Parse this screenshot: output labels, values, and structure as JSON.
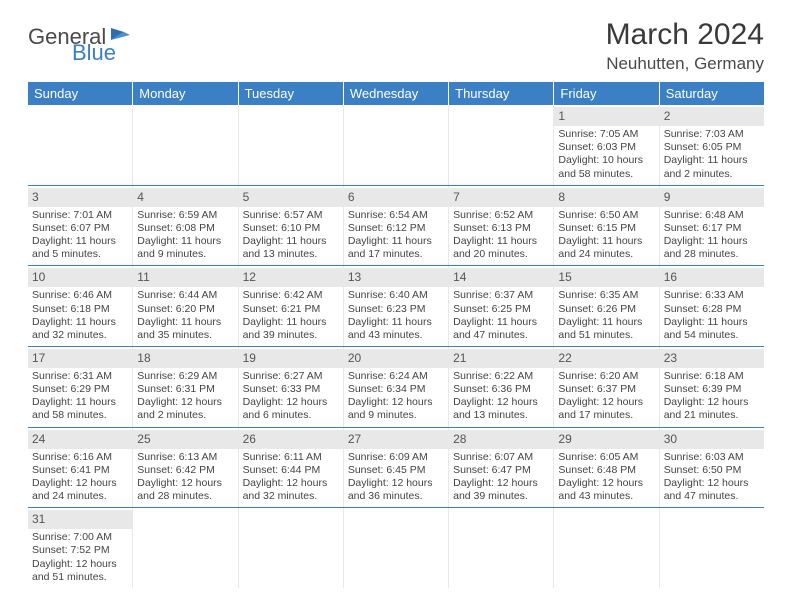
{
  "logo": {
    "text1": "General",
    "text2": "Blue"
  },
  "title": "March 2024",
  "location": "Neuhutten, Germany",
  "colors": {
    "header_bg": "#3b7fc4",
    "daynum_bg": "#e8e8e8",
    "border": "#3b7fc4"
  },
  "day_headers": [
    "Sunday",
    "Monday",
    "Tuesday",
    "Wednesday",
    "Thursday",
    "Friday",
    "Saturday"
  ],
  "weeks": [
    [
      null,
      null,
      null,
      null,
      null,
      {
        "n": "1",
        "sr": "Sunrise: 7:05 AM",
        "ss": "Sunset: 6:03 PM",
        "dl": "Daylight: 10 hours and 58 minutes."
      },
      {
        "n": "2",
        "sr": "Sunrise: 7:03 AM",
        "ss": "Sunset: 6:05 PM",
        "dl": "Daylight: 11 hours and 2 minutes."
      }
    ],
    [
      {
        "n": "3",
        "sr": "Sunrise: 7:01 AM",
        "ss": "Sunset: 6:07 PM",
        "dl": "Daylight: 11 hours and 5 minutes."
      },
      {
        "n": "4",
        "sr": "Sunrise: 6:59 AM",
        "ss": "Sunset: 6:08 PM",
        "dl": "Daylight: 11 hours and 9 minutes."
      },
      {
        "n": "5",
        "sr": "Sunrise: 6:57 AM",
        "ss": "Sunset: 6:10 PM",
        "dl": "Daylight: 11 hours and 13 minutes."
      },
      {
        "n": "6",
        "sr": "Sunrise: 6:54 AM",
        "ss": "Sunset: 6:12 PM",
        "dl": "Daylight: 11 hours and 17 minutes."
      },
      {
        "n": "7",
        "sr": "Sunrise: 6:52 AM",
        "ss": "Sunset: 6:13 PM",
        "dl": "Daylight: 11 hours and 20 minutes."
      },
      {
        "n": "8",
        "sr": "Sunrise: 6:50 AM",
        "ss": "Sunset: 6:15 PM",
        "dl": "Daylight: 11 hours and 24 minutes."
      },
      {
        "n": "9",
        "sr": "Sunrise: 6:48 AM",
        "ss": "Sunset: 6:17 PM",
        "dl": "Daylight: 11 hours and 28 minutes."
      }
    ],
    [
      {
        "n": "10",
        "sr": "Sunrise: 6:46 AM",
        "ss": "Sunset: 6:18 PM",
        "dl": "Daylight: 11 hours and 32 minutes."
      },
      {
        "n": "11",
        "sr": "Sunrise: 6:44 AM",
        "ss": "Sunset: 6:20 PM",
        "dl": "Daylight: 11 hours and 35 minutes."
      },
      {
        "n": "12",
        "sr": "Sunrise: 6:42 AM",
        "ss": "Sunset: 6:21 PM",
        "dl": "Daylight: 11 hours and 39 minutes."
      },
      {
        "n": "13",
        "sr": "Sunrise: 6:40 AM",
        "ss": "Sunset: 6:23 PM",
        "dl": "Daylight: 11 hours and 43 minutes."
      },
      {
        "n": "14",
        "sr": "Sunrise: 6:37 AM",
        "ss": "Sunset: 6:25 PM",
        "dl": "Daylight: 11 hours and 47 minutes."
      },
      {
        "n": "15",
        "sr": "Sunrise: 6:35 AM",
        "ss": "Sunset: 6:26 PM",
        "dl": "Daylight: 11 hours and 51 minutes."
      },
      {
        "n": "16",
        "sr": "Sunrise: 6:33 AM",
        "ss": "Sunset: 6:28 PM",
        "dl": "Daylight: 11 hours and 54 minutes."
      }
    ],
    [
      {
        "n": "17",
        "sr": "Sunrise: 6:31 AM",
        "ss": "Sunset: 6:29 PM",
        "dl": "Daylight: 11 hours and 58 minutes."
      },
      {
        "n": "18",
        "sr": "Sunrise: 6:29 AM",
        "ss": "Sunset: 6:31 PM",
        "dl": "Daylight: 12 hours and 2 minutes."
      },
      {
        "n": "19",
        "sr": "Sunrise: 6:27 AM",
        "ss": "Sunset: 6:33 PM",
        "dl": "Daylight: 12 hours and 6 minutes."
      },
      {
        "n": "20",
        "sr": "Sunrise: 6:24 AM",
        "ss": "Sunset: 6:34 PM",
        "dl": "Daylight: 12 hours and 9 minutes."
      },
      {
        "n": "21",
        "sr": "Sunrise: 6:22 AM",
        "ss": "Sunset: 6:36 PM",
        "dl": "Daylight: 12 hours and 13 minutes."
      },
      {
        "n": "22",
        "sr": "Sunrise: 6:20 AM",
        "ss": "Sunset: 6:37 PM",
        "dl": "Daylight: 12 hours and 17 minutes."
      },
      {
        "n": "23",
        "sr": "Sunrise: 6:18 AM",
        "ss": "Sunset: 6:39 PM",
        "dl": "Daylight: 12 hours and 21 minutes."
      }
    ],
    [
      {
        "n": "24",
        "sr": "Sunrise: 6:16 AM",
        "ss": "Sunset: 6:41 PM",
        "dl": "Daylight: 12 hours and 24 minutes."
      },
      {
        "n": "25",
        "sr": "Sunrise: 6:13 AM",
        "ss": "Sunset: 6:42 PM",
        "dl": "Daylight: 12 hours and 28 minutes."
      },
      {
        "n": "26",
        "sr": "Sunrise: 6:11 AM",
        "ss": "Sunset: 6:44 PM",
        "dl": "Daylight: 12 hours and 32 minutes."
      },
      {
        "n": "27",
        "sr": "Sunrise: 6:09 AM",
        "ss": "Sunset: 6:45 PM",
        "dl": "Daylight: 12 hours and 36 minutes."
      },
      {
        "n": "28",
        "sr": "Sunrise: 6:07 AM",
        "ss": "Sunset: 6:47 PM",
        "dl": "Daylight: 12 hours and 39 minutes."
      },
      {
        "n": "29",
        "sr": "Sunrise: 6:05 AM",
        "ss": "Sunset: 6:48 PM",
        "dl": "Daylight: 12 hours and 43 minutes."
      },
      {
        "n": "30",
        "sr": "Sunrise: 6:03 AM",
        "ss": "Sunset: 6:50 PM",
        "dl": "Daylight: 12 hours and 47 minutes."
      }
    ],
    [
      {
        "n": "31",
        "sr": "Sunrise: 7:00 AM",
        "ss": "Sunset: 7:52 PM",
        "dl": "Daylight: 12 hours and 51 minutes."
      },
      null,
      null,
      null,
      null,
      null,
      null
    ]
  ]
}
